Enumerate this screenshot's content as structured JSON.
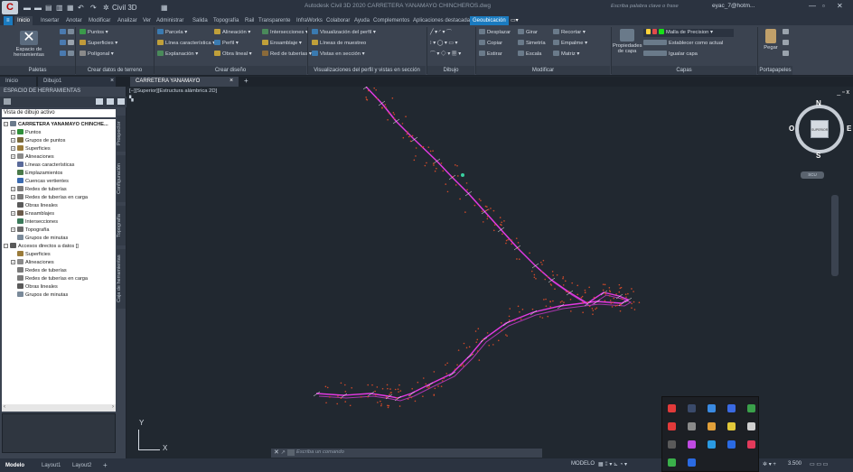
{
  "app": {
    "title": "Autodesk Civil 3D 2020   CARRETERA YANAMAYO CHINCHEROS.dwg",
    "workspace": "Civil 3D",
    "logo_letter": "C",
    "search_placeholder": "Escriba palabra clave o frase",
    "user": "eyac_7@hotm...",
    "window_controls": [
      "—",
      "▫",
      "✕"
    ]
  },
  "ribbon_tabs": [
    {
      "label": "Inicio"
    },
    {
      "label": "Insertar"
    },
    {
      "label": "Anotar"
    },
    {
      "label": "Modificar"
    },
    {
      "label": "Analizar"
    },
    {
      "label": "Ver"
    },
    {
      "label": "Administrar"
    },
    {
      "label": "Salida"
    },
    {
      "label": "Topografía"
    },
    {
      "label": "Rail"
    },
    {
      "label": "Transparente"
    },
    {
      "label": "InfraWorks"
    },
    {
      "label": "Colaborar"
    },
    {
      "label": "Ayuda"
    },
    {
      "label": "Complementos"
    },
    {
      "label": "Aplicaciones destacadas"
    },
    {
      "label": "Geoubicación"
    }
  ],
  "ribbon": {
    "big_button_toolspace": "Espacio de herramientas",
    "panel_paletas": "Paletas",
    "panel_crear_datos": "Crear datos de terreno",
    "panel_crear_diseno": "Crear diseño",
    "panel_visualizaciones": "Visualizaciones del perfil y vistas en sección",
    "panel_dibujo": "Dibujo",
    "panel_modificar": "Modificar",
    "panel_capas": "Capas",
    "panel_portapapeles": "Portapapeles",
    "ground": [
      "Puntos",
      "Superficies",
      "Polígonal"
    ],
    "design_a": [
      "Parcela",
      "Línea característica",
      "Explanación"
    ],
    "design_b": [
      "Alineación",
      "Perfil",
      "Obra lineal"
    ],
    "design_c": [
      "Intersecciones",
      "Ensamblaje",
      "Red de tuberías"
    ],
    "profile": [
      "Visualización del perfil",
      "Líneas de muestreo",
      "Vistas en sección"
    ],
    "modify": [
      "Desplazar",
      "Girar",
      "Recortar",
      "Copiar",
      "Simetría",
      "Empalme",
      "Estirar",
      "Escala",
      "Matriz"
    ],
    "layers_props": "Propiedades de capa",
    "layer_name": "Malla de Precision",
    "layer_actions": [
      "Establecer como actual",
      "Igualar capa"
    ],
    "paste": "Pegar"
  },
  "file_tabs": [
    {
      "label": "Inicio"
    },
    {
      "label": "Dibujo1"
    },
    {
      "label": "CARRETERA YANAMAYO CHINCHEROS*"
    }
  ],
  "palette": {
    "title": "ESPACIO DE HERRAMIENTAS",
    "view_select": "Vista de dibujo activo",
    "side_tabs": [
      "Prospector",
      "Configuración",
      "Topografía",
      "Caja de herramientas"
    ],
    "tree": [
      {
        "label": "CARRETERA YANAMAYO CHINCHE...",
        "depth": 0,
        "bold": true,
        "exp": "−",
        "color": "#6b7b8c"
      },
      {
        "label": "Puntos",
        "depth": 1,
        "exp": "+",
        "color": "#2f8f3a"
      },
      {
        "label": "Grupos de puntos",
        "depth": 1,
        "exp": "+",
        "color": "#7a6a3a"
      },
      {
        "label": "Superficies",
        "depth": 1,
        "exp": "+",
        "color": "#9a7b3a"
      },
      {
        "label": "Alineaciones",
        "depth": 1,
        "exp": "+",
        "color": "#8a8a8a"
      },
      {
        "label": "Líneas características",
        "depth": 1,
        "exp": "",
        "color": "#5a6a9a"
      },
      {
        "label": "Emplazamientos",
        "depth": 1,
        "exp": "",
        "color": "#4a7a4a"
      },
      {
        "label": "Cuencas vertientes",
        "depth": 1,
        "exp": "",
        "color": "#3a6ab0"
      },
      {
        "label": "Redes de tuberías",
        "depth": 1,
        "exp": "+",
        "color": "#7a7a7a"
      },
      {
        "label": "Redes de tuberías en carga",
        "depth": 1,
        "exp": "+",
        "color": "#7a7a7a"
      },
      {
        "label": "Obras lineales",
        "depth": 1,
        "exp": "",
        "color": "#5a5a5a"
      },
      {
        "label": "Ensamblajes",
        "depth": 1,
        "exp": "+",
        "color": "#6a5a4a"
      },
      {
        "label": "Intersecciones",
        "depth": 1,
        "exp": "",
        "color": "#3a7a5a"
      },
      {
        "label": "Topografía",
        "depth": 1,
        "exp": "+",
        "color": "#6a6a6a"
      },
      {
        "label": "Grupos de minutas",
        "depth": 1,
        "exp": "",
        "color": "#7a8a9a"
      },
      {
        "label": "Accesos directos a datos []",
        "depth": 0,
        "exp": "−",
        "color": "#5a5a5a"
      },
      {
        "label": "Superficies",
        "depth": 1,
        "exp": "",
        "color": "#9a7b3a"
      },
      {
        "label": "Alineaciones",
        "depth": 1,
        "exp": "+",
        "color": "#8a8a8a"
      },
      {
        "label": "Redes de tuberías",
        "depth": 1,
        "exp": "",
        "color": "#7a7a7a"
      },
      {
        "label": "Redes de tuberías en carga",
        "depth": 1,
        "exp": "",
        "color": "#7a7a7a"
      },
      {
        "label": "Obras lineales",
        "depth": 1,
        "exp": "",
        "color": "#5a5a5a"
      },
      {
        "label": "Grupos de minutas",
        "depth": 1,
        "exp": "",
        "color": "#7a8a9a"
      }
    ]
  },
  "viewport": {
    "label": "[−][Superior][Estructura alámbrica 2D]",
    "controls": "_ ▫ x",
    "alignment_color": "#e23ae2",
    "point_color": "#d24a2a",
    "axis_y": "Y",
    "axis_x": "X"
  },
  "viewcube": {
    "north": "N",
    "south": "S",
    "east": "E",
    "west": "O",
    "face": "SUPERIOR",
    "wcs": "SCU"
  },
  "command": {
    "placeholder": "Escriba un comando"
  },
  "status": {
    "tabs": [
      "Modelo",
      "Layout1",
      "Layout2"
    ],
    "model_label": "MODELO",
    "scale": "3.500"
  }
}
